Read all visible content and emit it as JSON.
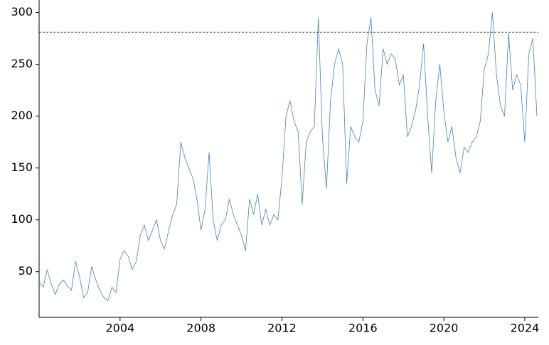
{
  "chart_data": {
    "type": "line",
    "x": [
      2000,
      2000.2,
      2000.4,
      2000.6,
      2000.8,
      2001,
      2001.2,
      2001.4,
      2001.6,
      2001.8,
      2002,
      2002.2,
      2002.4,
      2002.6,
      2002.8,
      2003,
      2003.2,
      2003.4,
      2003.6,
      2003.8,
      2004,
      2004.2,
      2004.4,
      2004.6,
      2004.8,
      2005,
      2005.2,
      2005.4,
      2005.6,
      2005.8,
      2006,
      2006.2,
      2006.4,
      2006.6,
      2006.8,
      2007,
      2007.2,
      2007.4,
      2007.6,
      2007.8,
      2008,
      2008.2,
      2008.4,
      2008.6,
      2008.8,
      2009,
      2009.2,
      2009.4,
      2009.6,
      2009.8,
      2010,
      2010.2,
      2010.4,
      2010.6,
      2010.8,
      2011,
      2011.2,
      2011.4,
      2011.6,
      2011.8,
      2012,
      2012.2,
      2012.4,
      2012.6,
      2012.8,
      2013,
      2013.2,
      2013.4,
      2013.6,
      2013.8,
      2014,
      2014.2,
      2014.4,
      2014.6,
      2014.8,
      2015,
      2015.2,
      2015.4,
      2015.6,
      2015.8,
      2016,
      2016.2,
      2016.4,
      2016.6,
      2016.8,
      2017,
      2017.2,
      2017.4,
      2017.6,
      2017.8,
      2018,
      2018.2,
      2018.4,
      2018.6,
      2018.8,
      2019,
      2019.2,
      2019.4,
      2019.6,
      2019.8,
      2020,
      2020.2,
      2020.4,
      2020.6,
      2020.8,
      2021,
      2021.2,
      2021.4,
      2021.6,
      2021.8,
      2022,
      2022.2,
      2022.4,
      2022.6,
      2022.8,
      2023,
      2023.2,
      2023.4,
      2023.6,
      2023.8,
      2024,
      2024.2,
      2024.4,
      2024.6
    ],
    "values": [
      40,
      35,
      52,
      38,
      28,
      38,
      42,
      36,
      32,
      60,
      45,
      25,
      30,
      55,
      42,
      32,
      25,
      22,
      35,
      30,
      62,
      70,
      65,
      52,
      60,
      85,
      95,
      80,
      90,
      100,
      80,
      72,
      90,
      105,
      115,
      175,
      160,
      150,
      140,
      120,
      90,
      110,
      165,
      100,
      80,
      95,
      100,
      120,
      105,
      95,
      85,
      70,
      120,
      105,
      125,
      95,
      110,
      95,
      105,
      100,
      140,
      200,
      215,
      195,
      185,
      115,
      175,
      185,
      190,
      295,
      180,
      130,
      215,
      250,
      265,
      250,
      135,
      190,
      180,
      175,
      195,
      270,
      295,
      225,
      210,
      265,
      250,
      260,
      255,
      230,
      240,
      180,
      190,
      205,
      230,
      270,
      200,
      145,
      215,
      250,
      205,
      175,
      190,
      160,
      145,
      170,
      165,
      175,
      180,
      195,
      245,
      260,
      300,
      240,
      210,
      200,
      280,
      225,
      240,
      230,
      175,
      260,
      275,
      200
    ],
    "color": "#4682b4",
    "hline": 281,
    "xlim": [
      2000,
      2024.67
    ],
    "xticks": [
      2004,
      2008,
      2012,
      2016,
      2020,
      2024
    ],
    "ylim": [
      6,
      312
    ],
    "yticks": [
      50,
      100,
      150,
      200,
      250,
      300
    ]
  }
}
